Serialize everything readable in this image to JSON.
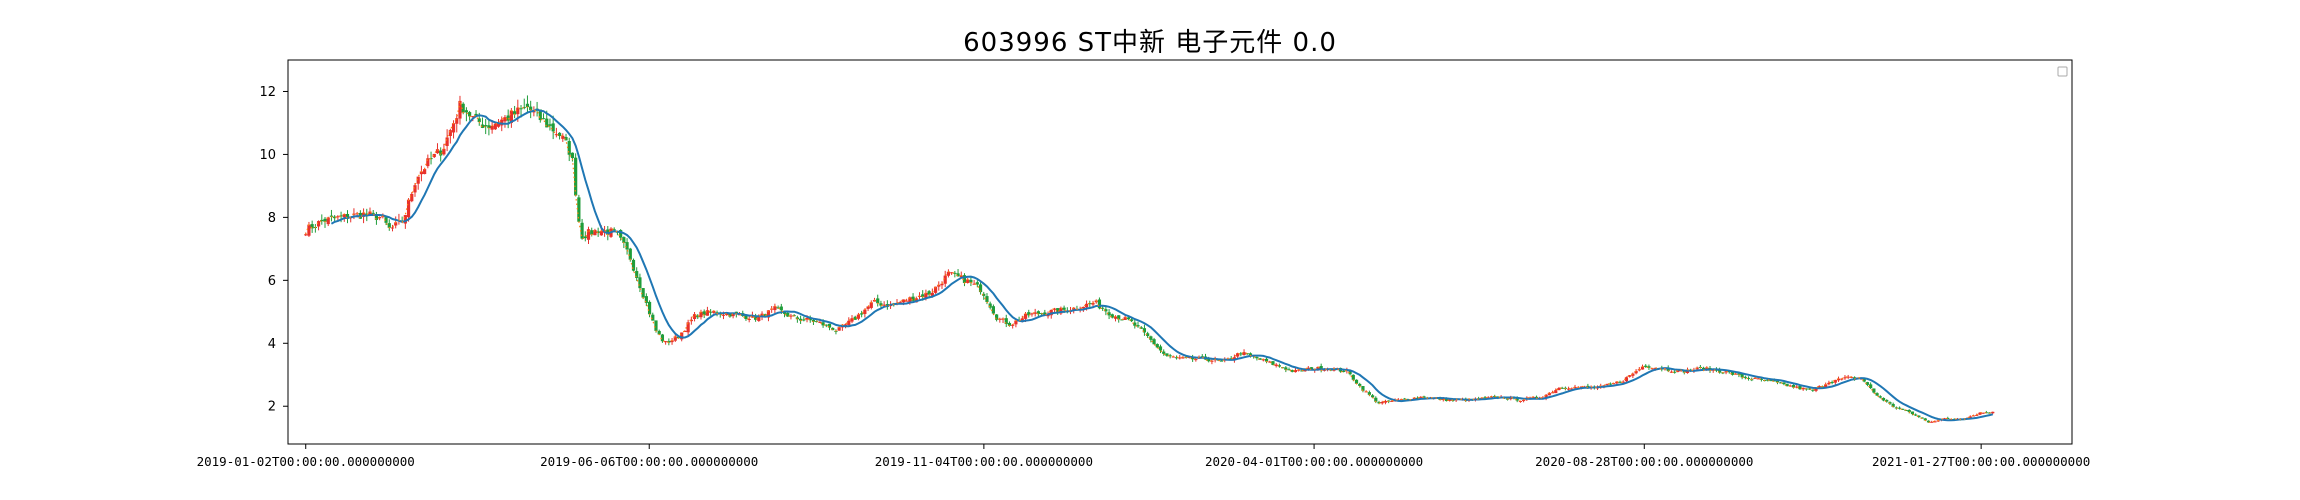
{
  "chart_data": {
    "type": "candlestick",
    "title": "603996 ST中新 电子元件 0.0",
    "xlabel": "",
    "ylabel": "",
    "ylim": [
      0.8,
      13.0
    ],
    "yticks": [
      2,
      4,
      6,
      8,
      10,
      12
    ],
    "grid": false,
    "legend": "top-right (empty)",
    "x_range_days": [
      -8,
      797
    ],
    "xticks": [
      {
        "label": "2019-01-02T00:00:00.000000000",
        "day": 0
      },
      {
        "label": "2019-06-06T00:00:00.000000000",
        "day": 155
      },
      {
        "label": "2019-11-04T00:00:00.000000000",
        "day": 306
      },
      {
        "label": "2020-04-01T00:00:00.000000000",
        "day": 455
      },
      {
        "label": "2020-08-28T00:00:00.000000000",
        "day": 604
      },
      {
        "label": "2021-01-27T00:00:00.000000000",
        "day": 756
      }
    ],
    "price_path": [
      [
        0,
        7.6
      ],
      [
        8,
        7.9
      ],
      [
        16,
        8.0
      ],
      [
        26,
        8.1
      ],
      [
        34,
        8.0
      ],
      [
        38,
        7.6
      ],
      [
        44,
        7.9
      ],
      [
        50,
        9.3
      ],
      [
        56,
        9.8
      ],
      [
        62,
        10.2
      ],
      [
        70,
        11.6
      ],
      [
        76,
        11.1
      ],
      [
        82,
        10.9
      ],
      [
        92,
        11.2
      ],
      [
        100,
        11.5
      ],
      [
        108,
        11.0
      ],
      [
        115,
        10.6
      ],
      [
        120,
        10.0
      ],
      [
        124,
        7.4
      ],
      [
        132,
        7.6
      ],
      [
        140,
        7.5
      ],
      [
        146,
        6.8
      ],
      [
        152,
        5.6
      ],
      [
        158,
        4.4
      ],
      [
        162,
        4.0
      ],
      [
        168,
        4.2
      ],
      [
        176,
        4.9
      ],
      [
        184,
        5.0
      ],
      [
        194,
        4.9
      ],
      [
        204,
        4.8
      ],
      [
        212,
        5.1
      ],
      [
        220,
        4.8
      ],
      [
        230,
        4.7
      ],
      [
        240,
        4.4
      ],
      [
        248,
        4.8
      ],
      [
        256,
        5.3
      ],
      [
        264,
        5.2
      ],
      [
        272,
        5.4
      ],
      [
        282,
        5.6
      ],
      [
        290,
        6.2
      ],
      [
        298,
        6.0
      ],
      [
        305,
        5.7
      ],
      [
        312,
        4.8
      ],
      [
        318,
        4.6
      ],
      [
        326,
        4.9
      ],
      [
        336,
        5.0
      ],
      [
        346,
        5.1
      ],
      [
        356,
        5.3
      ],
      [
        364,
        4.9
      ],
      [
        372,
        4.7
      ],
      [
        380,
        4.2
      ],
      [
        388,
        3.6
      ],
      [
        396,
        3.5
      ],
      [
        406,
        3.5
      ],
      [
        414,
        3.4
      ],
      [
        422,
        3.7
      ],
      [
        430,
        3.5
      ],
      [
        438,
        3.3
      ],
      [
        446,
        3.1
      ],
      [
        454,
        3.2
      ],
      [
        462,
        3.2
      ],
      [
        470,
        3.1
      ],
      [
        476,
        2.6
      ],
      [
        484,
        2.1
      ],
      [
        494,
        2.2
      ],
      [
        504,
        2.3
      ],
      [
        514,
        2.2
      ],
      [
        526,
        2.2
      ],
      [
        538,
        2.3
      ],
      [
        548,
        2.2
      ],
      [
        558,
        2.3
      ],
      [
        566,
        2.6
      ],
      [
        574,
        2.6
      ],
      [
        584,
        2.6
      ],
      [
        594,
        2.8
      ],
      [
        604,
        3.3
      ],
      [
        612,
        3.2
      ],
      [
        620,
        3.1
      ],
      [
        630,
        3.2
      ],
      [
        640,
        3.1
      ],
      [
        650,
        2.9
      ],
      [
        660,
        2.8
      ],
      [
        672,
        2.6
      ],
      [
        680,
        2.5
      ],
      [
        688,
        2.8
      ],
      [
        696,
        2.9
      ],
      [
        702,
        2.9
      ],
      [
        708,
        2.4
      ],
      [
        716,
        2.0
      ],
      [
        724,
        1.8
      ],
      [
        732,
        1.5
      ],
      [
        740,
        1.6
      ],
      [
        748,
        1.6
      ],
      [
        756,
        1.8
      ],
      [
        762,
        1.8
      ]
    ],
    "series": [
      {
        "name": "",
        "kind": "candles",
        "up_color": "#e8302b",
        "down_color": "#1f9d3a"
      },
      {
        "name": "",
        "kind": "moving-average",
        "color": "#1f77b4"
      },
      {
        "name": "",
        "kind": "dotted-line",
        "color": "#ff7f0e"
      }
    ]
  }
}
